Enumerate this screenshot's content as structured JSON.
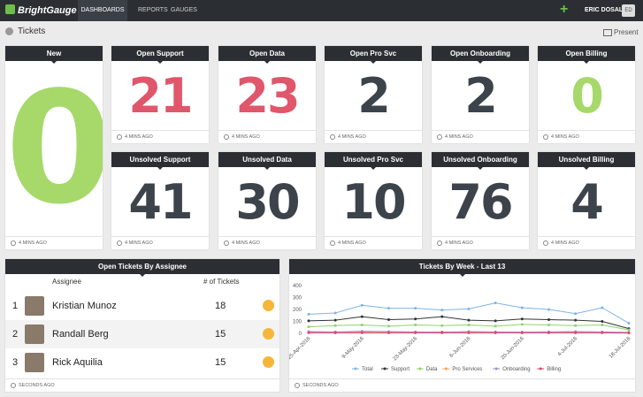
{
  "nav": {
    "logo": "BrightGauge",
    "items": [
      "DASHBOARDS",
      "REPORTS",
      "GAUGES"
    ],
    "user": "ERIC DOSAL",
    "avatar": "ED"
  },
  "header": {
    "title": "Tickets",
    "action": "Present"
  },
  "gauges": [
    {
      "title": "New",
      "value": 0,
      "color": "#a6d96a",
      "updated": "4 MINS AGO"
    },
    {
      "title": "Open Support",
      "value": 21,
      "color": "#e0566b",
      "updated": "4 MINS AGO"
    },
    {
      "title": "Open Data",
      "value": 23,
      "color": "#e0566b",
      "updated": "4 MINS AGO"
    },
    {
      "title": "Open Pro Svc",
      "value": 2,
      "color": "#3d434a",
      "updated": "4 MINS AGO"
    },
    {
      "title": "Open Onboarding",
      "value": 2,
      "color": "#3d434a",
      "updated": "4 MINS AGO"
    },
    {
      "title": "Open Billing",
      "value": 0,
      "color": "#a6d96a",
      "updated": "4 MINS AGO"
    },
    {
      "title": "Unsolved Support",
      "value": 41,
      "color": "#3d434a",
      "updated": "4 MINS AGO"
    },
    {
      "title": "Unsolved Data",
      "value": 30,
      "color": "#3d434a",
      "updated": "4 MINS AGO"
    },
    {
      "title": "Unsolved Pro Svc",
      "value": 10,
      "color": "#3d434a",
      "updated": "4 MINS AGO"
    },
    {
      "title": "Unsolved Onboarding",
      "value": 76,
      "color": "#3d434a",
      "updated": "4 MINS AGO"
    },
    {
      "title": "Unsolved Billing",
      "value": 4,
      "color": "#3d434a",
      "updated": "4 MINS AGO"
    }
  ],
  "table": {
    "title": "Open Tickets By Assignee",
    "columns": [
      "Assignee",
      "# of Tickets"
    ],
    "rows": [
      [
        1,
        "Kristian Munoz",
        18
      ],
      [
        2,
        "Randall Berg",
        15
      ],
      [
        3,
        "Rick Aquilia",
        15
      ]
    ],
    "updated": "SECONDS AGO"
  },
  "chart_data": {
    "type": "line",
    "title": "Tickets By Week - Last 13",
    "categories": [
      "25-Apr-2016",
      null,
      "9-May-2016",
      null,
      "23-May-2016",
      null,
      "6-Jun-2016",
      null,
      "20-Jun-2016",
      null,
      "4-Jul-2016",
      null,
      "18-Jul-2016"
    ],
    "series": [
      {
        "name": "Total",
        "color": "#7fb3e8",
        "values": [
          160,
          170,
          235,
          210,
          210,
          195,
          205,
          255,
          215,
          200,
          165,
          215,
          85
        ]
      },
      {
        "name": "Support",
        "color": "#333333",
        "values": [
          105,
          110,
          140,
          115,
          120,
          140,
          110,
          105,
          120,
          115,
          110,
          100,
          40
        ]
      },
      {
        "name": "Data",
        "color": "#8fd36b",
        "values": [
          55,
          65,
          70,
          60,
          70,
          65,
          70,
          60,
          75,
          70,
          65,
          70,
          30
        ]
      },
      {
        "name": "Pro Services",
        "color": "#f4a15d",
        "values": [
          10,
          12,
          10,
          8,
          10,
          12,
          10,
          8,
          10,
          12,
          10,
          8,
          5
        ]
      },
      {
        "name": "Onboarding",
        "color": "#9b8fd8",
        "values": [
          15,
          12,
          18,
          15,
          12,
          10,
          15,
          12,
          10,
          12,
          15,
          12,
          8
        ]
      },
      {
        "name": "Billing",
        "color": "#e0446a",
        "values": [
          5,
          5,
          5,
          5,
          5,
          5,
          5,
          5,
          5,
          5,
          5,
          5,
          3
        ]
      }
    ],
    "ylim": [
      0,
      400
    ],
    "yticks": [
      0,
      100,
      200,
      300,
      400
    ],
    "grid": false,
    "legend": "bottom",
    "updated": "SECONDS AGO"
  }
}
